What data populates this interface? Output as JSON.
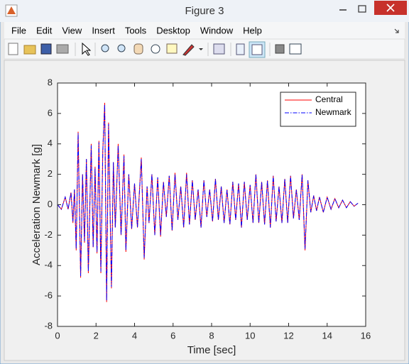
{
  "window": {
    "title": "Figure 3",
    "menu": [
      "File",
      "Edit",
      "View",
      "Insert",
      "Tools",
      "Desktop",
      "Window",
      "Help"
    ]
  },
  "chart_data": {
    "type": "line",
    "xlabel": "Time [sec]",
    "ylabel": "Acceleration Newmark [g]",
    "xlim": [
      0,
      16
    ],
    "ylim": [
      -8,
      8
    ],
    "xticks": [
      0,
      2,
      4,
      6,
      8,
      10,
      12,
      14,
      16
    ],
    "yticks": [
      -8,
      -6,
      -4,
      -2,
      0,
      2,
      4,
      6,
      8
    ],
    "grid": false,
    "legend": "northeast",
    "x": [
      0,
      0.2,
      0.4,
      0.55,
      0.7,
      0.8,
      0.88,
      0.97,
      1.07,
      1.2,
      1.3,
      1.4,
      1.5,
      1.6,
      1.75,
      1.85,
      1.95,
      2.05,
      2.15,
      2.25,
      2.35,
      2.45,
      2.55,
      2.65,
      2.8,
      2.9,
      3.0,
      3.15,
      3.3,
      3.45,
      3.55,
      3.7,
      3.85,
      4.0,
      4.15,
      4.35,
      4.5,
      4.65,
      4.75,
      4.9,
      5.05,
      5.2,
      5.35,
      5.5,
      5.65,
      5.8,
      5.95,
      6.1,
      6.25,
      6.4,
      6.55,
      6.7,
      6.85,
      7.0,
      7.15,
      7.3,
      7.45,
      7.6,
      7.75,
      7.9,
      8.05,
      8.2,
      8.35,
      8.5,
      8.65,
      8.8,
      8.95,
      9.1,
      9.25,
      9.4,
      9.55,
      9.7,
      9.85,
      10.0,
      10.15,
      10.3,
      10.45,
      10.6,
      10.75,
      10.9,
      11.05,
      11.2,
      11.35,
      11.5,
      11.65,
      11.8,
      11.95,
      12.1,
      12.25,
      12.4,
      12.55,
      12.7,
      12.85,
      13.0,
      13.15,
      13.3,
      13.45,
      13.6,
      13.8,
      14.0,
      14.2,
      14.4,
      14.6,
      14.8,
      15.0,
      15.2,
      15.4,
      15.6
    ],
    "series": [
      {
        "name": "Central",
        "color": "#ff0000",
        "dash": "solid",
        "values": [
          0,
          -0.3,
          0.5,
          -0.3,
          0.8,
          -1.2,
          1.0,
          -3.0,
          4.8,
          -4.8,
          2.0,
          -2.5,
          3.0,
          -4.5,
          4.0,
          -2.8,
          2.5,
          -3.2,
          4.2,
          -4.5,
          3.5,
          6.7,
          -6.4,
          5.4,
          -5.5,
          2.8,
          -1.5,
          4.0,
          -2.0,
          3.3,
          -3.1,
          2.0,
          -1.6,
          1.4,
          -1.5,
          3.1,
          -3.6,
          1.2,
          -1.2,
          2.0,
          -2.0,
          1.8,
          -2.1,
          1.5,
          -0.8,
          1.9,
          -1.7,
          2.1,
          -1.0,
          1.2,
          -1.5,
          2.1,
          -1.3,
          1.6,
          -1.0,
          1.0,
          -1.5,
          1.6,
          -0.8,
          1.0,
          -1.1,
          1.7,
          -1.0,
          1.2,
          -1.2,
          1.0,
          -1.3,
          1.5,
          -1.0,
          1.4,
          -1.5,
          1.5,
          -1.0,
          1.3,
          -1.2,
          2.0,
          -1.2,
          1.5,
          -1.3,
          1.6,
          -1.5,
          1.9,
          -1.1,
          1.2,
          -1.2,
          1.7,
          -1.2,
          1.9,
          -0.9,
          1.0,
          -1.0,
          2.0,
          -3.0,
          1.6,
          -0.5,
          0.6,
          -0.4,
          0.5,
          -0.5,
          0.5,
          -0.3,
          0.4,
          -0.2,
          0.3,
          -0.2,
          0.2,
          -0.1,
          0.1
        ]
      },
      {
        "name": "Newmark",
        "color": "#0000ff",
        "dash": "dashdot",
        "values": [
          0,
          -0.3,
          0.5,
          -0.3,
          0.8,
          -1.1,
          1.0,
          -2.9,
          4.7,
          -4.7,
          2.0,
          -2.4,
          3.0,
          -4.4,
          3.9,
          -2.8,
          2.4,
          -3.1,
          4.1,
          -4.4,
          3.5,
          6.6,
          -6.3,
          5.3,
          -5.4,
          2.8,
          -1.5,
          3.9,
          -2.0,
          3.2,
          -3.0,
          2.0,
          -1.6,
          1.4,
          -1.5,
          3.0,
          -3.5,
          1.2,
          -1.2,
          2.0,
          -2.0,
          1.8,
          -2.0,
          1.5,
          -0.8,
          1.9,
          -1.7,
          2.0,
          -1.0,
          1.2,
          -1.5,
          2.0,
          -1.3,
          1.6,
          -1.0,
          1.0,
          -1.5,
          1.6,
          -0.8,
          1.0,
          -1.1,
          1.7,
          -1.0,
          1.2,
          -1.2,
          1.0,
          -1.3,
          1.5,
          -1.0,
          1.4,
          -1.5,
          1.5,
          -1.0,
          1.3,
          -1.2,
          2.0,
          -1.2,
          1.5,
          -1.3,
          1.6,
          -1.5,
          1.9,
          -1.1,
          1.2,
          -1.2,
          1.7,
          -1.2,
          1.9,
          -0.9,
          1.0,
          -1.0,
          2.0,
          -2.9,
          1.6,
          -0.5,
          0.6,
          -0.4,
          0.5,
          -0.5,
          0.5,
          -0.3,
          0.4,
          -0.2,
          0.3,
          -0.2,
          0.2,
          -0.1,
          0.1
        ]
      }
    ]
  }
}
